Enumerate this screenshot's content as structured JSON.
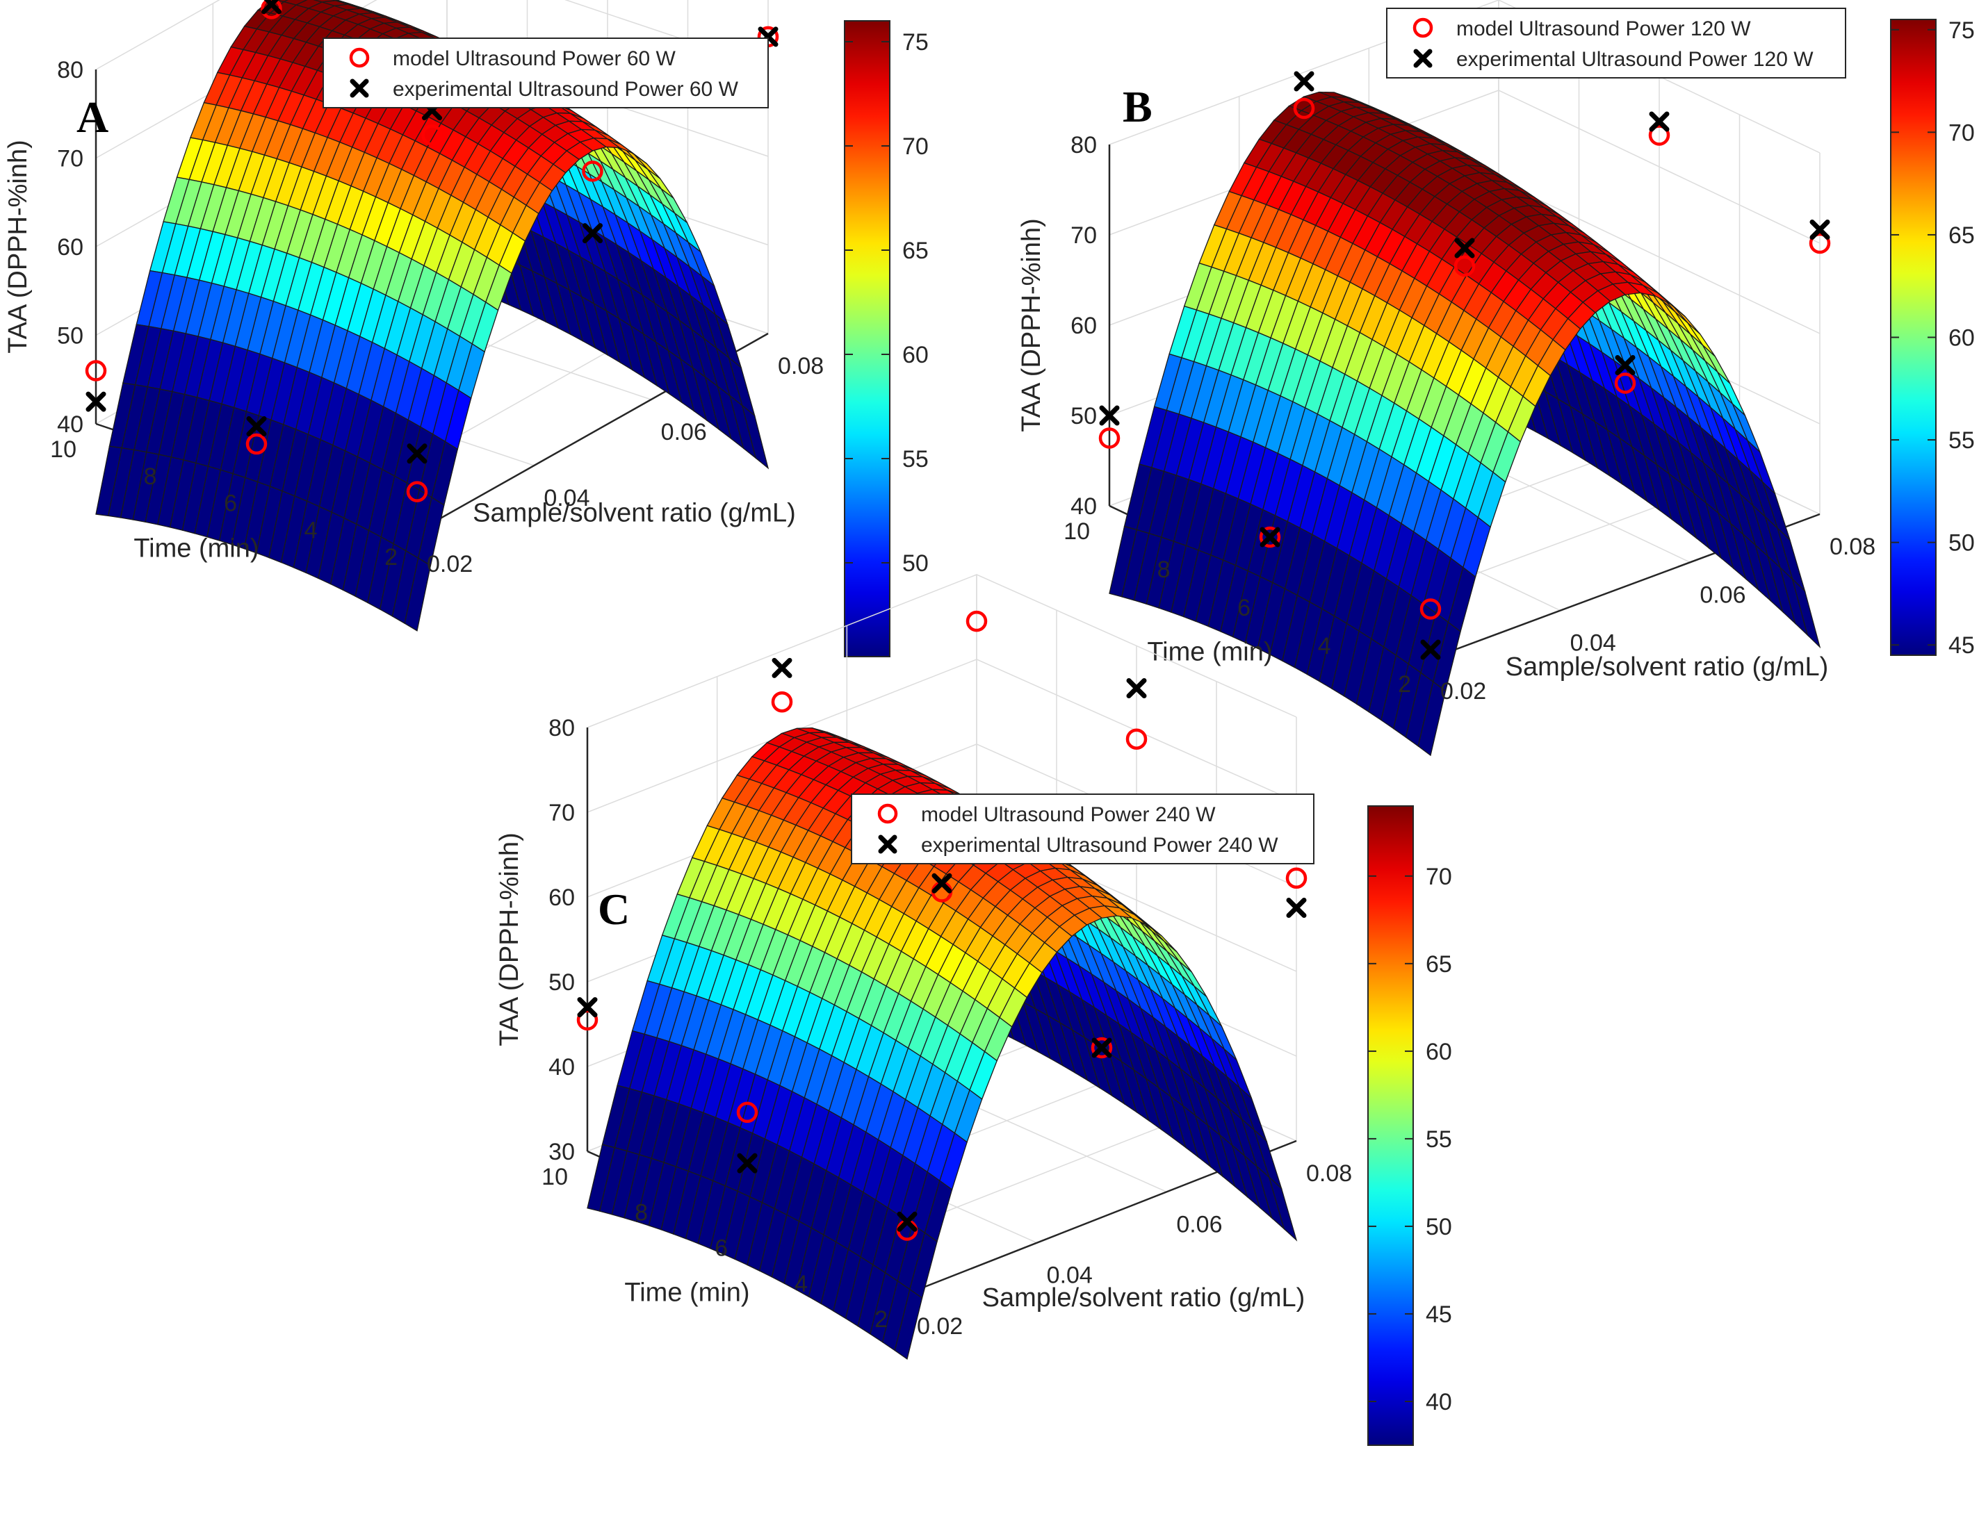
{
  "figure": "Three 3D surface plots of TAA versus time and sample/solvent ratio",
  "chart_data": [
    {
      "type": "surface3d",
      "panel_label": "A",
      "xlabel": "Time (min)",
      "ylabel": "Sample/solvent ratio (g/mL)",
      "zlabel": "TAA (DPPH-%inh)",
      "x_ticks": [
        "10",
        "8",
        "6",
        "4",
        "2"
      ],
      "y_ticks": [
        "0.02",
        "0.04",
        "0.06",
        "0.08"
      ],
      "z_ticks": [
        "40",
        "50",
        "60",
        "70",
        "80"
      ],
      "colorbar_ticks": [
        "50",
        "55",
        "60",
        "65",
        "70",
        "75"
      ],
      "xlim": [
        2,
        10
      ],
      "ylim": [
        0.02,
        0.08
      ],
      "zlim": [
        40,
        80
      ],
      "clim": [
        45.5,
        76
      ],
      "surface": {
        "a": 44.5,
        "bx": 2.5,
        "by": 32,
        "cx": -2.2,
        "cy": -13,
        "dxy": 2
      },
      "legend": [
        {
          "label": "model Ultrasound Power 60 W",
          "marker": "circle",
          "color": "#ff0000"
        },
        {
          "label": "experimental Ultrasound Power 60 W",
          "marker": "x",
          "color": "#000000"
        }
      ],
      "model_points": [
        [
          10,
          0.02,
          46
        ],
        [
          6,
          0.02,
          43.8
        ],
        [
          2,
          0.02,
          44.5
        ],
        [
          10,
          0.05,
          75.7
        ],
        [
          6,
          0.05,
          67.5
        ],
        [
          2,
          0.05,
          69.5
        ],
        [
          10,
          0.08,
          72.5
        ],
        [
          6,
          0.08,
          74.7
        ],
        [
          2,
          0.08,
          73.5
        ]
      ],
      "experimental_points": [
        [
          10,
          0.02,
          42.5
        ],
        [
          6,
          0.02,
          45.8
        ],
        [
          2,
          0.02,
          48.8
        ],
        [
          10,
          0.05,
          76.2
        ],
        [
          6,
          0.05,
          70.3
        ],
        [
          2,
          0.05,
          62.5
        ],
        [
          10,
          0.08,
          73.8
        ],
        [
          2,
          0.08,
          73.5
        ]
      ]
    },
    {
      "type": "surface3d",
      "panel_label": "B",
      "xlabel": "Time (min)",
      "ylabel": "Sample/solvent ratio (g/mL)",
      "zlabel": "TAA (DPPH-%inh)",
      "x_ticks": [
        "10",
        "8",
        "6",
        "4",
        "2"
      ],
      "y_ticks": [
        "0.02",
        "0.04",
        "0.06",
        "0.08"
      ],
      "z_ticks": [
        "40",
        "50",
        "60",
        "70",
        "80"
      ],
      "colorbar_ticks": [
        "45",
        "50",
        "55",
        "60",
        "65",
        "70",
        "75"
      ],
      "xlim": [
        2,
        10
      ],
      "ylim": [
        0.02,
        0.08
      ],
      "zlim": [
        40,
        80
      ],
      "clim": [
        44.5,
        75.5
      ],
      "surface": {
        "a": 45,
        "bx": 2.5,
        "by": 32,
        "cx": -2.2,
        "cy": -13,
        "dxy": 2
      },
      "legend": [
        {
          "label": "model Ultrasound Power 120 W",
          "marker": "circle",
          "color": "#ff0000"
        },
        {
          "label": "experimental Ultrasound Power 120 W",
          "marker": "x",
          "color": "#000000"
        }
      ],
      "model_points": [
        [
          10,
          0.02,
          47.5
        ],
        [
          6,
          0.02,
          45
        ],
        [
          2,
          0.02,
          45.5
        ],
        [
          10,
          0.05,
          76
        ],
        [
          6,
          0.05,
          67
        ],
        [
          2,
          0.05,
          62.5
        ],
        [
          10,
          0.08,
          75.5
        ],
        [
          6,
          0.08,
          73.5
        ],
        [
          2,
          0.08,
          70
        ]
      ],
      "experimental_points": [
        [
          10,
          0.02,
          50
        ],
        [
          6,
          0.02,
          45
        ],
        [
          2,
          0.02,
          41
        ],
        [
          10,
          0.05,
          79
        ],
        [
          6,
          0.05,
          69
        ],
        [
          2,
          0.05,
          64.5
        ],
        [
          10,
          0.08,
          77
        ],
        [
          6,
          0.08,
          75
        ],
        [
          2,
          0.08,
          71.5
        ]
      ]
    },
    {
      "type": "surface3d",
      "panel_label": "C",
      "xlabel": "Time (min)",
      "ylabel": "Sample/solvent ratio (g/mL)",
      "zlabel": "TAA (DPPH-%inh)",
      "x_ticks": [
        "10",
        "8",
        "6",
        "4",
        "2"
      ],
      "y_ticks": [
        "0.02",
        "0.04",
        "0.06",
        "0.08"
      ],
      "z_ticks": [
        "30",
        "40",
        "50",
        "60",
        "70",
        "80"
      ],
      "colorbar_ticks": [
        "40",
        "45",
        "50",
        "55",
        "60",
        "65",
        "70"
      ],
      "xlim": [
        2,
        10
      ],
      "ylim": [
        0.02,
        0.08
      ],
      "zlim": [
        30,
        80
      ],
      "clim": [
        37.5,
        74
      ],
      "surface": {
        "a": 38,
        "bx": 2.5,
        "by": 32,
        "cx": -2.2,
        "cy": -13,
        "dxy": 2
      },
      "legend": [
        {
          "label": "model Ultrasound Power 240 W",
          "marker": "circle",
          "color": "#ff0000"
        },
        {
          "label": "experimental Ultrasound Power 240 W",
          "marker": "x",
          "color": "#000000"
        }
      ],
      "model_points": [
        [
          10,
          0.02,
          45.5
        ],
        [
          6,
          0.02,
          43
        ],
        [
          2,
          0.02,
          37.5
        ],
        [
          10,
          0.05,
          74
        ],
        [
          6,
          0.05,
          60
        ],
        [
          2,
          0.05,
          50
        ],
        [
          10,
          0.08,
          74.5
        ],
        [
          6,
          0.08,
          69
        ],
        [
          2,
          0.08,
          61
        ]
      ],
      "experimental_points": [
        [
          10,
          0.02,
          47
        ],
        [
          6,
          0.02,
          37
        ],
        [
          2,
          0.02,
          38.5
        ],
        [
          10,
          0.05,
          78
        ],
        [
          6,
          0.05,
          61
        ],
        [
          2,
          0.05,
          50
        ],
        [
          6,
          0.08,
          75
        ],
        [
          2,
          0.08,
          57.5
        ]
      ]
    }
  ]
}
